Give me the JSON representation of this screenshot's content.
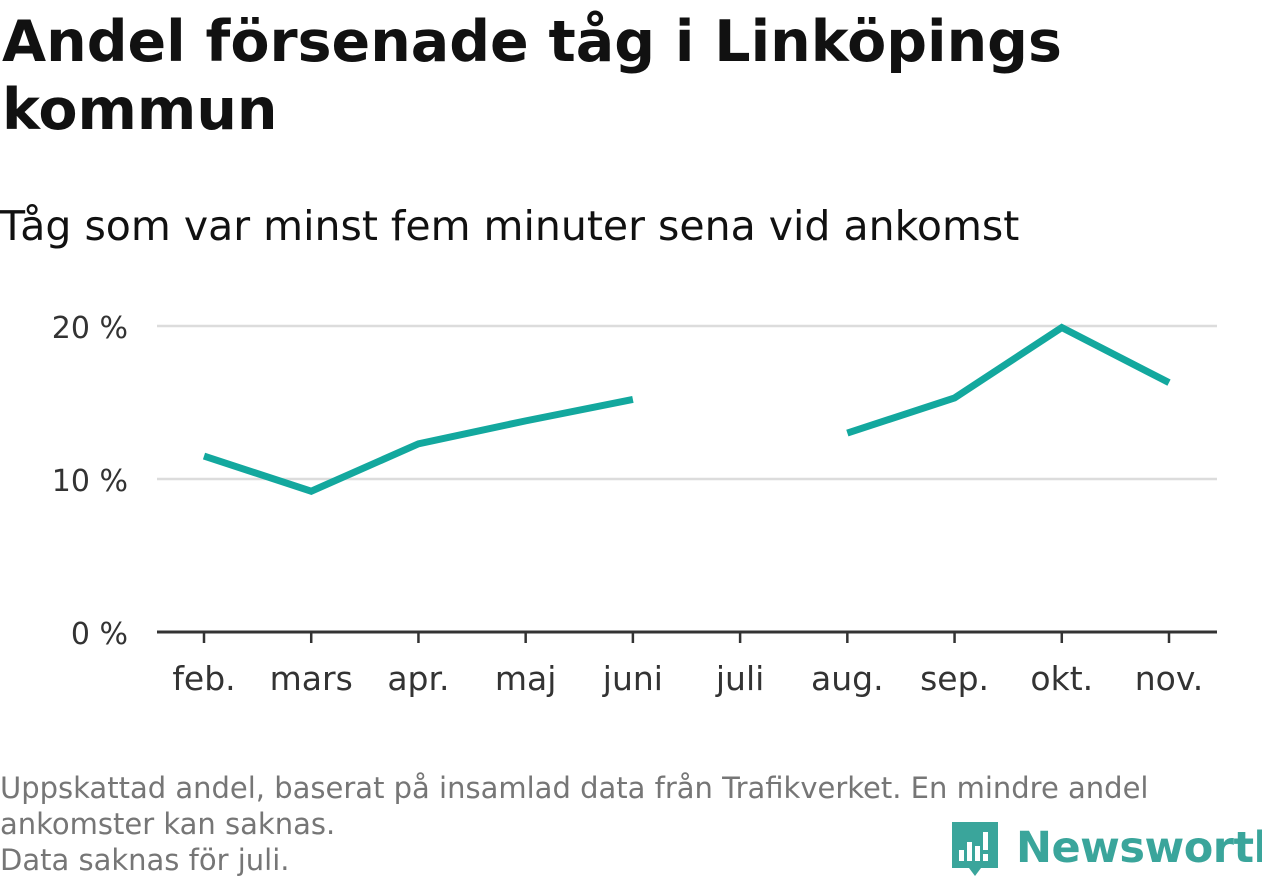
{
  "header": {
    "title": "Andel försenade tåg i Linköpings kommun",
    "subtitle": "Tåg som var minst fem minuter sena vid ankomst"
  },
  "footnote": {
    "line1": "Uppskattad andel, baserat på insamlad data från Trafikverket. En mindre andel",
    "line2": "ankomster kan saknas.",
    "line3": "Data saknas för juli."
  },
  "brand": {
    "name": "Newsworthy",
    "icon": "newsworthy-logo-icon",
    "color": "#3aa59b"
  },
  "chart_data": {
    "type": "line",
    "categories": [
      "feb.",
      "mars",
      "apr.",
      "maj",
      "juni",
      "juli",
      "aug.",
      "sep.",
      "okt.",
      "nov."
    ],
    "series": [
      {
        "values": [
          11.5,
          9.2,
          12.3,
          13.8,
          15.2,
          null,
          13.0,
          15.3,
          19.9,
          16.3
        ],
        "color": "#13a89e"
      }
    ],
    "ylim": [
      0,
      20
    ],
    "yticks": [
      0,
      10,
      20
    ],
    "ytick_labels": [
      "0 %",
      "10 %",
      "20 %"
    ],
    "grid": true,
    "legend": "none",
    "xlabel": "",
    "ylabel": ""
  }
}
